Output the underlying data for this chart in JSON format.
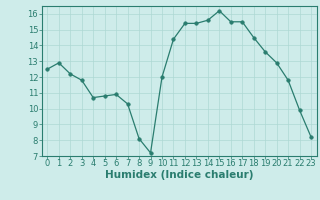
{
  "x": [
    0,
    1,
    2,
    3,
    4,
    5,
    6,
    7,
    8,
    9,
    10,
    11,
    12,
    13,
    14,
    15,
    16,
    17,
    18,
    19,
    20,
    21,
    22,
    23
  ],
  "y": [
    12.5,
    12.9,
    12.2,
    11.8,
    10.7,
    10.8,
    10.9,
    10.3,
    8.1,
    7.2,
    12.0,
    14.4,
    15.4,
    15.4,
    15.6,
    16.2,
    15.5,
    15.5,
    14.5,
    13.6,
    12.9,
    11.8,
    9.9,
    8.2
  ],
  "xlabel": "Humidex (Indice chaleur)",
  "xlim": [
    -0.5,
    23.5
  ],
  "ylim": [
    7,
    16.5
  ],
  "yticks": [
    7,
    8,
    9,
    10,
    11,
    12,
    13,
    14,
    15,
    16
  ],
  "xtick_labels": [
    "0",
    "1",
    "2",
    "3",
    "4",
    "5",
    "6",
    "7",
    "8",
    "9",
    "10",
    "11",
    "12",
    "13",
    "14",
    "15",
    "16",
    "17",
    "18",
    "19",
    "20",
    "21",
    "22",
    "23"
  ],
  "line_color": "#2a7d6f",
  "marker_size": 2.5,
  "bg_color": "#ceecea",
  "grid_color": "#aed8d4",
  "xlabel_fontsize": 7.5,
  "tick_fontsize": 6.0
}
